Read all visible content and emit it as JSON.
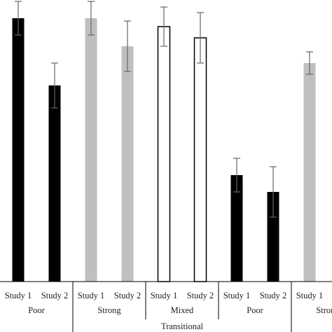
{
  "chart_data": {
    "type": "bar",
    "title": "",
    "xlabel": "",
    "ylabel": "",
    "ylim": [
      0,
      100
    ],
    "grid": false,
    "legend": "none",
    "supergroup_label": "Transitional",
    "groups": [
      {
        "label": "Poor",
        "color": "#000000",
        "fill_style": "solid"
      },
      {
        "label": "Strong",
        "color": "#bfbfbf",
        "fill_style": "solid"
      },
      {
        "label": "Mixed",
        "color": "#000000",
        "fill_style": "outline"
      },
      {
        "label": "Poor",
        "color": "#000000",
        "fill_style": "solid"
      },
      {
        "label": "Strong",
        "color": "#bfbfbf",
        "fill_style": "solid"
      }
    ],
    "bars": [
      {
        "group": 0,
        "category": "Study 1",
        "value": 94,
        "error": 6
      },
      {
        "group": 0,
        "category": "Study 2",
        "value": 70,
        "error": 8
      },
      {
        "group": 1,
        "category": "Study 1",
        "value": 94,
        "error": 6
      },
      {
        "group": 1,
        "category": "Study 2",
        "value": 84,
        "error": 9
      },
      {
        "group": 2,
        "category": "Study 1",
        "value": 91,
        "error": 7
      },
      {
        "group": 2,
        "category": "Study 2",
        "value": 87,
        "error": 9
      },
      {
        "group": 3,
        "category": "Study 1",
        "value": 38,
        "error": 6
      },
      {
        "group": 3,
        "category": "Study 2",
        "value": 32,
        "error": 9
      },
      {
        "group": 4,
        "category": "Study 1",
        "value": 78,
        "error": 4
      }
    ]
  }
}
